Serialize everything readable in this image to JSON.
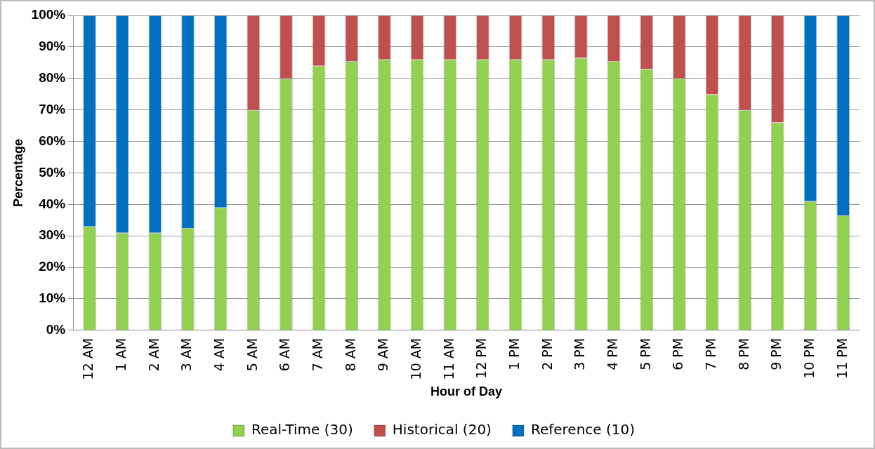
{
  "chart_data": {
    "type": "bar",
    "stacked": true,
    "xlabel": "Hour of Day",
    "ylabel": "Percentage",
    "categories": [
      "12 AM",
      "1 AM",
      "2 AM",
      "3 AM",
      "4 AM",
      "5 AM",
      "6 AM",
      "7 AM",
      "8 AM",
      "9 AM",
      "10 AM",
      "11 AM",
      "12 PM",
      "1 PM",
      "2 PM",
      "3 PM",
      "4 PM",
      "5 PM",
      "6 PM",
      "7 PM",
      "8 PM",
      "9 PM",
      "10 PM",
      "11 PM"
    ],
    "series": [
      {
        "name": "Real-Time (30)",
        "color": "#92d050",
        "values": [
          33,
          31,
          31,
          32.5,
          39,
          70,
          80,
          84,
          85.5,
          86,
          86,
          86,
          86,
          86,
          86,
          86.5,
          85.5,
          83,
          80,
          75,
          70,
          66,
          41,
          36.5
        ]
      },
      {
        "name": "Historical (20)",
        "color": "#c0504d",
        "values": [
          null,
          null,
          null,
          null,
          null,
          30,
          20,
          16,
          14.5,
          14,
          14,
          14,
          14,
          14,
          14,
          13.5,
          14.5,
          17,
          20,
          25,
          30,
          34,
          null,
          null
        ]
      },
      {
        "name": "Reference (10)",
        "color": "#0070c0",
        "values": [
          67,
          69,
          69,
          67.5,
          61,
          null,
          null,
          null,
          null,
          null,
          null,
          null,
          null,
          null,
          null,
          null,
          null,
          null,
          null,
          null,
          null,
          null,
          59,
          63.5
        ]
      }
    ],
    "ylim": [
      0,
      100
    ],
    "yticks": [
      {
        "value": 0,
        "label": "0%"
      },
      {
        "value": 10,
        "label": "10%"
      },
      {
        "value": 20,
        "label": "20%"
      },
      {
        "value": 30,
        "label": "30%"
      },
      {
        "value": 40,
        "label": "40%"
      },
      {
        "value": 50,
        "label": "50%"
      },
      {
        "value": 60,
        "label": "60%"
      },
      {
        "value": 70,
        "label": "70%"
      },
      {
        "value": 80,
        "label": "80%"
      },
      {
        "value": 90,
        "label": "90%"
      },
      {
        "value": 100,
        "label": "100%"
      }
    ],
    "grid": "y",
    "legend": "bottom"
  }
}
